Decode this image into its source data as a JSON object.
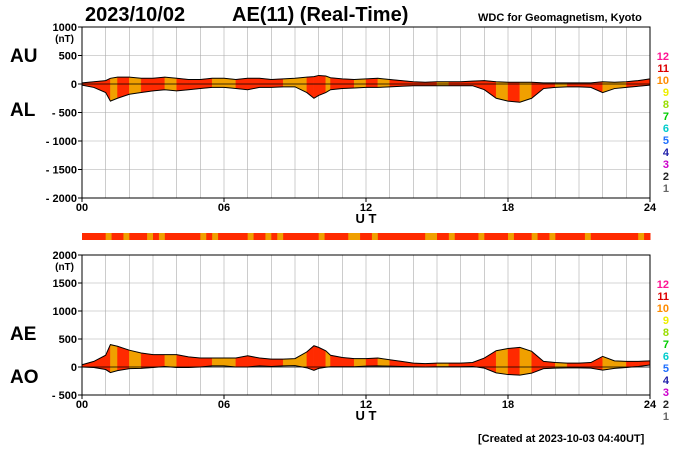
{
  "header": {
    "date": "2023/10/02",
    "title": "AE(11) (Real-Time)",
    "source": "WDC for Geomagnetism, Kyoto",
    "created": "[Created at 2023-10-03 04:40UT]"
  },
  "colors": {
    "fill_main": "#ff2a00",
    "fill_alt": "#f0a000",
    "grid": "#aaaaaa",
    "level_colors": [
      "#ff1493",
      "#dd0000",
      "#ff8c00",
      "#eeee00",
      "#99dd00",
      "#00cc00",
      "#00cccc",
      "#1e6fff",
      "#2020aa",
      "#cc00cc",
      "#222222",
      "#666666",
      "#bbbbbb"
    ]
  },
  "station_levels": [
    "12",
    "11",
    "10",
    "9",
    "8",
    "7",
    "6",
    "5",
    "4",
    "3",
    "2",
    "1"
  ],
  "chart_data": [
    {
      "type": "area",
      "name": "AU/AL",
      "labels": [
        "AU",
        "AL"
      ],
      "unit": "(nT)",
      "xlabel": "U T",
      "x_ticks": [
        "00",
        "06",
        "12",
        "18",
        "24"
      ],
      "y_ticks": [
        "1000",
        "500",
        "0",
        "- 500",
        "- 1000",
        "- 1500",
        "- 2000"
      ],
      "xlim": [
        0,
        24
      ],
      "ylim": [
        -2000,
        1000
      ],
      "grid": true,
      "x": [
        0,
        0.5,
        1,
        1.2,
        1.5,
        2,
        2.5,
        3,
        3.5,
        4,
        4.5,
        5,
        5.5,
        6,
        6.5,
        7,
        7.5,
        8,
        8.5,
        9,
        9.5,
        9.8,
        10,
        10.3,
        10.5,
        11,
        11.5,
        12,
        12.5,
        13,
        13.5,
        14,
        14.5,
        15,
        15.5,
        16,
        16.5,
        17,
        17.5,
        18,
        18.5,
        19,
        19.5,
        20,
        20.5,
        21,
        21.5,
        22,
        22.5,
        23,
        23.5,
        24
      ],
      "series": [
        {
          "name": "AU",
          "values": [
            20,
            40,
            60,
            100,
            120,
            120,
            100,
            100,
            120,
            100,
            80,
            80,
            100,
            100,
            80,
            100,
            100,
            80,
            90,
            100,
            120,
            130,
            150,
            140,
            110,
            90,
            80,
            90,
            100,
            80,
            60,
            40,
            30,
            40,
            40,
            40,
            50,
            60,
            40,
            30,
            30,
            30,
            20,
            20,
            20,
            20,
            20,
            40,
            30,
            40,
            60,
            90
          ]
        },
        {
          "name": "AL",
          "values": [
            -20,
            -60,
            -150,
            -300,
            -250,
            -180,
            -150,
            -120,
            -100,
            -120,
            -100,
            -80,
            -60,
            -60,
            -80,
            -100,
            -60,
            -60,
            -50,
            -50,
            -150,
            -250,
            -200,
            -150,
            -100,
            -80,
            -70,
            -60,
            -60,
            -50,
            -40,
            -30,
            -30,
            -30,
            -30,
            -30,
            -30,
            -100,
            -250,
            -300,
            -320,
            -250,
            -80,
            -60,
            -50,
            -50,
            -60,
            -150,
            -80,
            -60,
            -40,
            -20
          ]
        }
      ]
    },
    {
      "type": "area",
      "name": "AE/AO",
      "labels": [
        "AE",
        "AO"
      ],
      "unit": "(nT)",
      "xlabel": "U T",
      "x_ticks": [
        "00",
        "06",
        "12",
        "18",
        "24"
      ],
      "y_ticks": [
        "2000",
        "1500",
        "1000",
        "500",
        "0",
        "- 500"
      ],
      "xlim": [
        0,
        24
      ],
      "ylim": [
        -500,
        2000
      ],
      "grid": true,
      "x": [
        0,
        0.5,
        1,
        1.2,
        1.5,
        2,
        2.5,
        3,
        3.5,
        4,
        4.5,
        5,
        5.5,
        6,
        6.5,
        7,
        7.5,
        8,
        8.5,
        9,
        9.5,
        9.8,
        10,
        10.3,
        10.5,
        11,
        11.5,
        12,
        12.5,
        13,
        13.5,
        14,
        14.5,
        15,
        15.5,
        16,
        16.5,
        17,
        17.5,
        18,
        18.5,
        19,
        19.5,
        20,
        20.5,
        21,
        21.5,
        22,
        22.5,
        23,
        23.5,
        24
      ],
      "series": [
        {
          "name": "AE",
          "values": [
            40,
            100,
            210,
            400,
            370,
            300,
            250,
            220,
            220,
            220,
            180,
            160,
            160,
            160,
            160,
            200,
            160,
            140,
            140,
            150,
            270,
            380,
            350,
            290,
            210,
            170,
            150,
            150,
            160,
            130,
            100,
            70,
            60,
            70,
            70,
            70,
            80,
            160,
            290,
            330,
            350,
            280,
            100,
            80,
            70,
            70,
            80,
            190,
            110,
            100,
            100,
            110
          ]
        },
        {
          "name": "AO",
          "values": [
            0,
            -10,
            -45,
            -100,
            -65,
            -30,
            -25,
            -10,
            10,
            -10,
            -10,
            0,
            20,
            20,
            0,
            0,
            20,
            10,
            20,
            25,
            -15,
            -60,
            -25,
            -5,
            5,
            5,
            5,
            15,
            20,
            15,
            10,
            5,
            0,
            5,
            5,
            5,
            10,
            -20,
            -105,
            -135,
            -145,
            -110,
            -30,
            -20,
            -15,
            -15,
            -20,
            -55,
            -25,
            -10,
            10,
            35
          ]
        }
      ],
      "activity_bar": true
    }
  ]
}
